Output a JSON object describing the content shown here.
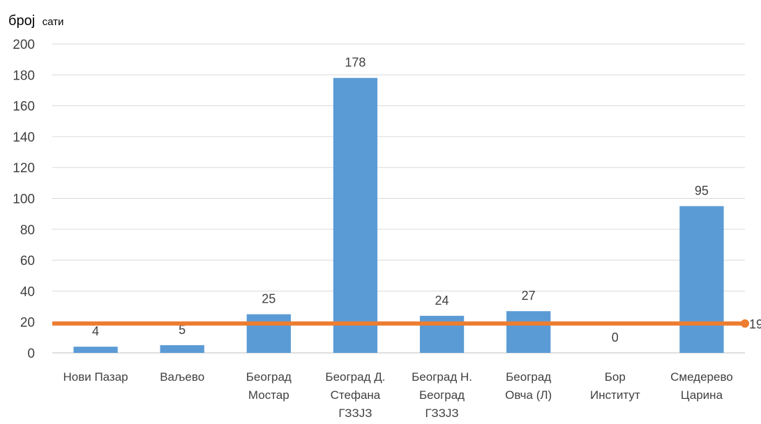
{
  "chart_data": {
    "type": "bar",
    "ylabel_main": "број",
    "ylabel_sub": "сати",
    "ylim": [
      0,
      200
    ],
    "yticks": [
      0,
      20,
      40,
      60,
      80,
      100,
      120,
      140,
      160,
      180,
      200
    ],
    "grid": true,
    "categories": [
      [
        "Нови Пазар"
      ],
      [
        "Ваљево"
      ],
      [
        "Београд",
        "Мостар"
      ],
      [
        "Београд Д.",
        "Стефана",
        "ГЗЗЈЗ"
      ],
      [
        "Београд Н.",
        "Београд",
        "ГЗЗЈЗ"
      ],
      [
        "Београд",
        "Овча (Л)"
      ],
      [
        "Бор",
        "Институт"
      ],
      [
        "Смедерево",
        "Царина"
      ]
    ],
    "series": [
      {
        "type": "bar",
        "values": [
          4,
          5,
          25,
          178,
          24,
          27,
          0,
          95
        ],
        "color": "#5B9BD5"
      },
      {
        "type": "line",
        "value": 19,
        "label": "19",
        "color": "#ED7D31"
      }
    ]
  }
}
